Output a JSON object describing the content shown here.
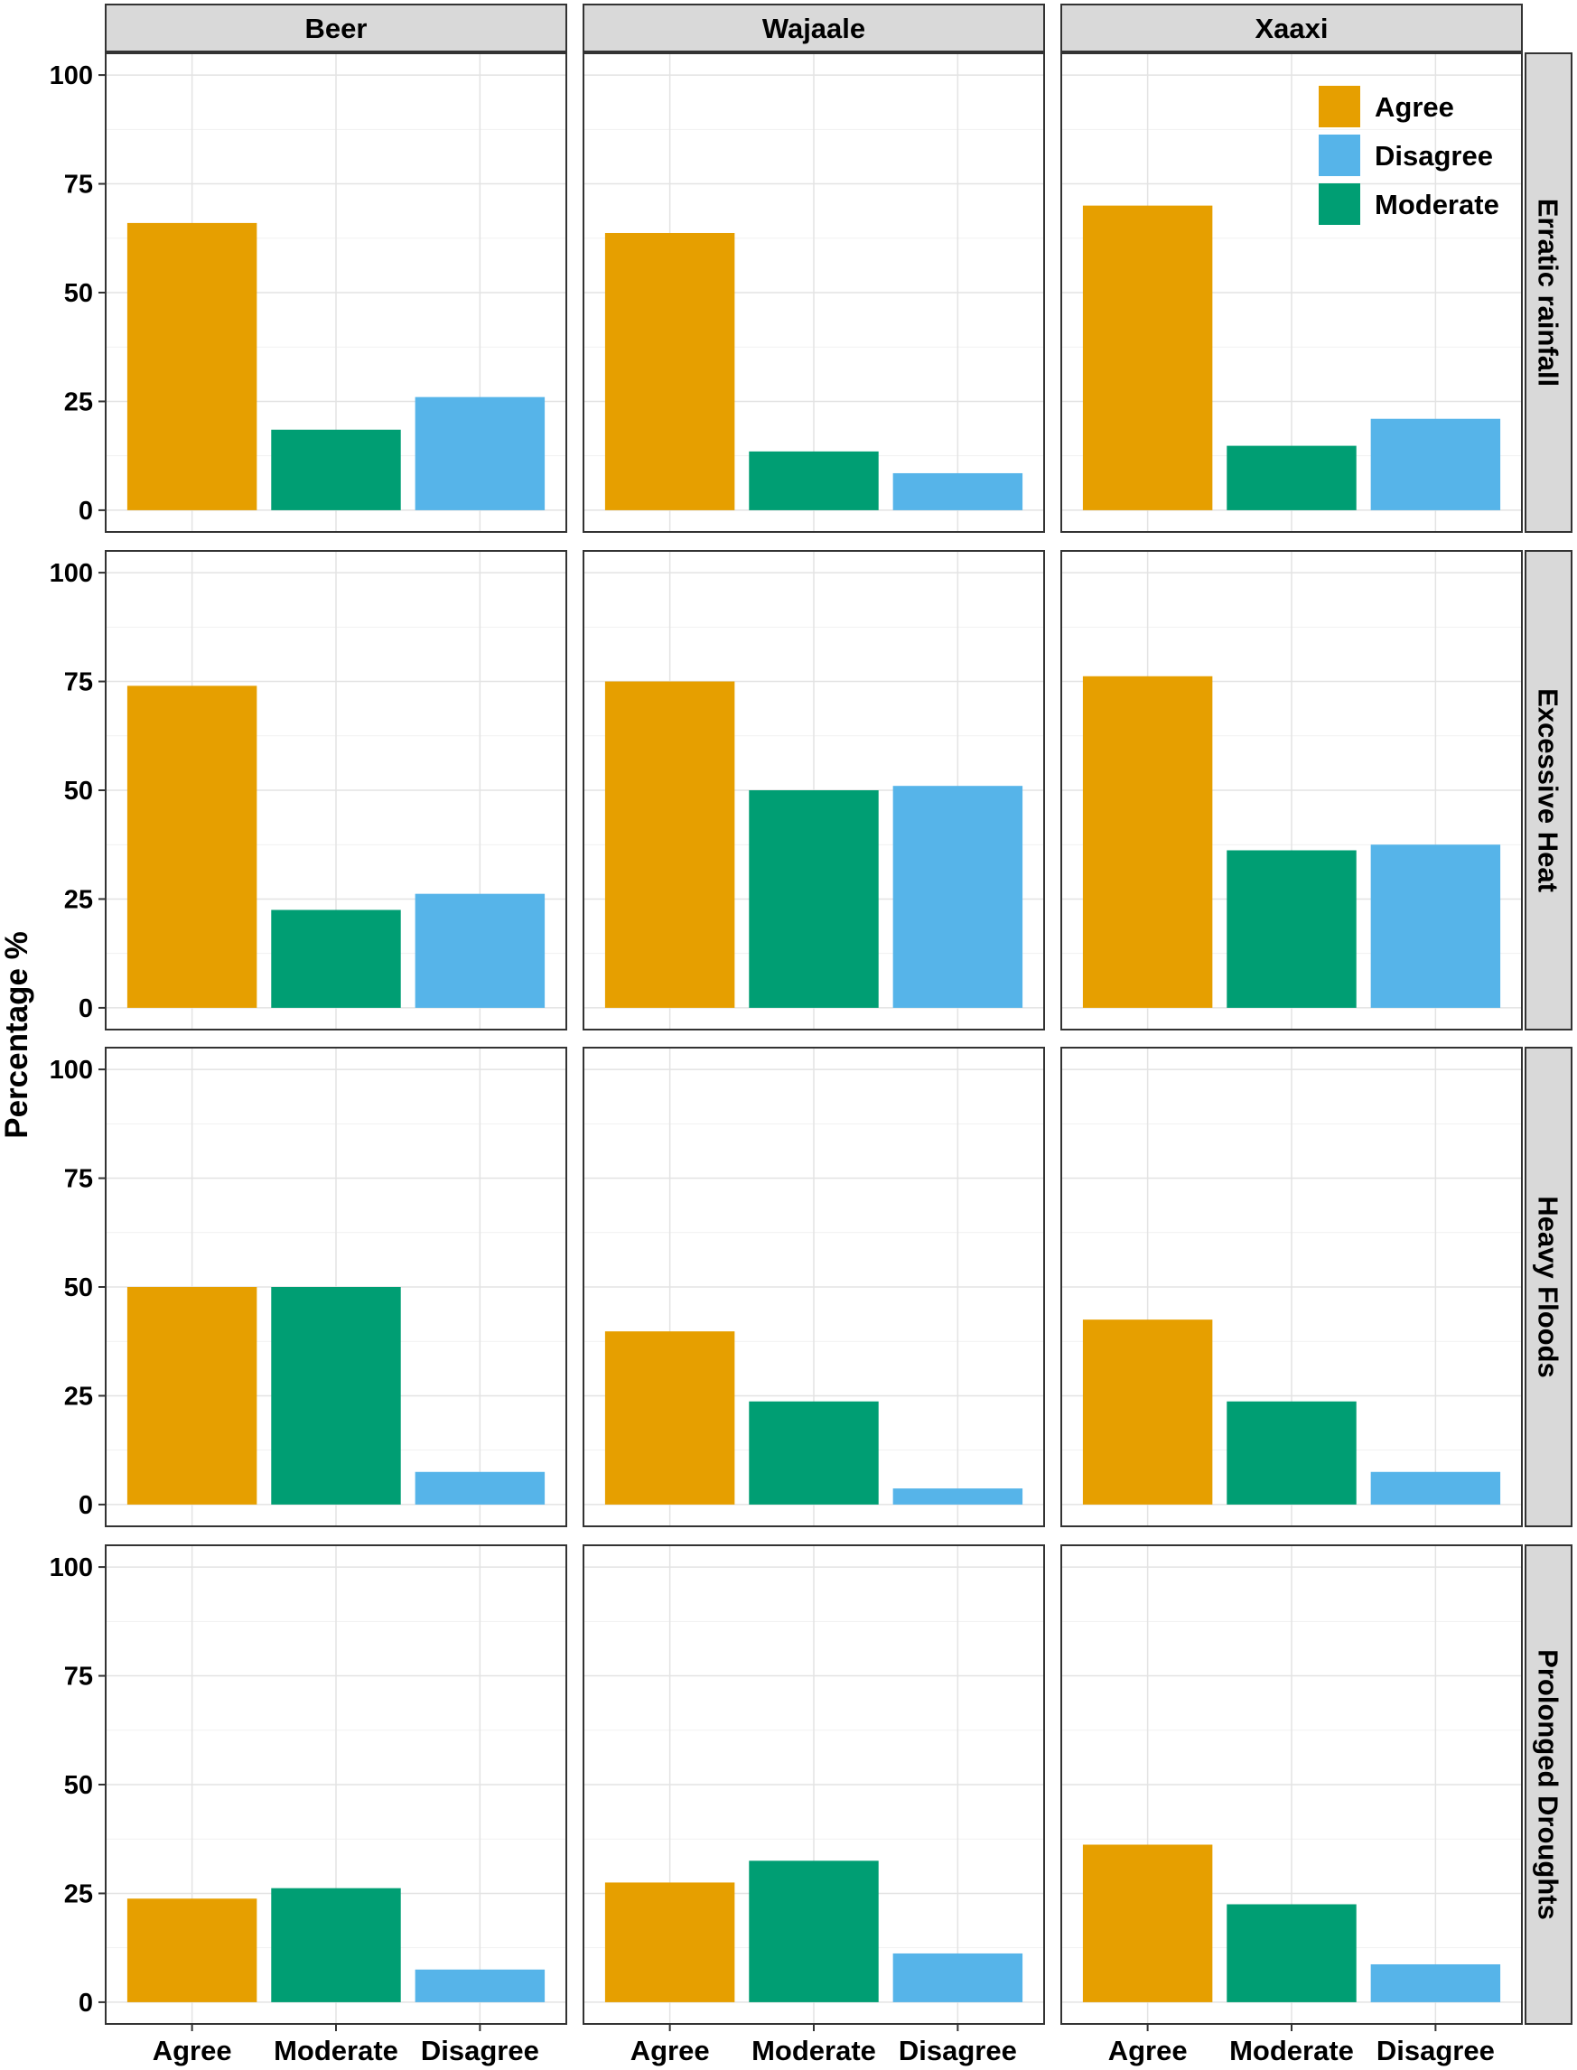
{
  "chart_data": {
    "type": "bar",
    "ylabel": "Percentage %",
    "xlabel": "",
    "ylim": [
      0,
      100
    ],
    "yticks": [
      0,
      25,
      50,
      75,
      100
    ],
    "grid": true,
    "legend_position": "top-right",
    "columns": [
      "Beer",
      "Wajaale",
      "Xaaxi"
    ],
    "rows": [
      "Erratic rainfall",
      "Excessive Heat",
      "Heavy Floods",
      "Prolonged Droughts"
    ],
    "categories": [
      "Agree",
      "Moderate",
      "Disagree"
    ],
    "colors": {
      "Agree": "#E69F00",
      "Moderate": "#009E73",
      "Disagree": "#56B4E9"
    },
    "legend": [
      "Agree",
      "Disagree",
      "Moderate"
    ],
    "panels": [
      {
        "row": "Erratic rainfall",
        "column": "Beer",
        "values": [
          66,
          18.5,
          26
        ]
      },
      {
        "row": "Erratic rainfall",
        "column": "Wajaale",
        "values": [
          63.7,
          13.5,
          8.5
        ]
      },
      {
        "row": "Erratic rainfall",
        "column": "Xaaxi",
        "values": [
          70,
          14.8,
          21
        ]
      },
      {
        "row": "Excessive Heat",
        "column": "Beer",
        "values": [
          74,
          22.5,
          26.2
        ]
      },
      {
        "row": "Excessive Heat",
        "column": "Wajaale",
        "values": [
          75,
          50,
          51
        ]
      },
      {
        "row": "Excessive Heat",
        "column": "Xaaxi",
        "values": [
          76.2,
          36.2,
          37.5
        ]
      },
      {
        "row": "Heavy Floods",
        "column": "Beer",
        "values": [
          50,
          50,
          7.5
        ]
      },
      {
        "row": "Heavy Floods",
        "column": "Wajaale",
        "values": [
          39.8,
          23.7,
          3.7
        ]
      },
      {
        "row": "Heavy Floods",
        "column": "Xaaxi",
        "values": [
          42.5,
          23.7,
          7.5
        ]
      },
      {
        "row": "Prolonged Droughts",
        "column": "Beer",
        "values": [
          23.8,
          26.2,
          7.5
        ]
      },
      {
        "row": "Prolonged Droughts",
        "column": "Wajaale",
        "values": [
          27.5,
          32.5,
          11.2
        ]
      },
      {
        "row": "Prolonged Droughts",
        "column": "Xaaxi",
        "values": [
          36.2,
          22.5,
          8.7
        ]
      }
    ]
  }
}
